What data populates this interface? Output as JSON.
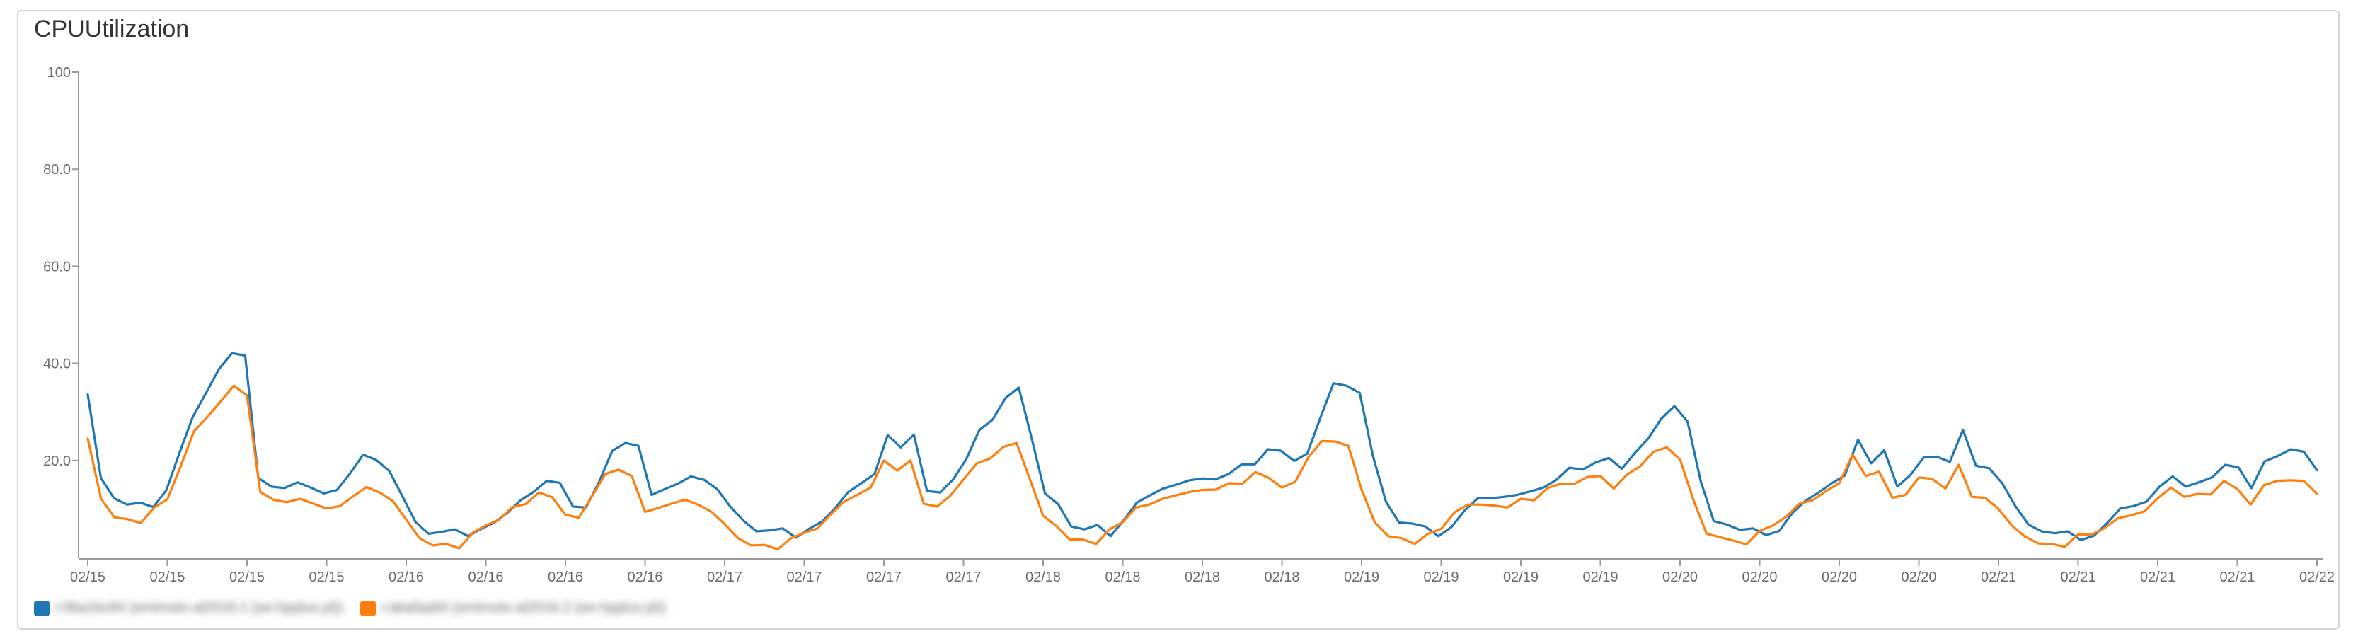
{
  "title": "CPUUtilization",
  "chart_data": {
    "type": "line",
    "title": "CPUUtilization",
    "xlabel": "",
    "ylabel": "",
    "ylim": [
      0,
      100
    ],
    "y_ticks": [
      "100",
      "80.0",
      "60.0",
      "40.0",
      "20.0"
    ],
    "y_tick_values": [
      100,
      80,
      60,
      40,
      20
    ],
    "x_tick_labels": [
      "02/15",
      "02/15",
      "02/15",
      "02/15",
      "02/16",
      "02/16",
      "02/16",
      "02/16",
      "02/17",
      "02/17",
      "02/17",
      "02/17",
      "02/18",
      "02/18",
      "02/18",
      "02/18",
      "02/19",
      "02/19",
      "02/19",
      "02/19",
      "02/20",
      "02/20",
      "02/20",
      "02/20",
      "02/21",
      "02/21",
      "02/21",
      "02/21",
      "02/22"
    ],
    "grid": false,
    "legend_position": "bottom-left",
    "series": [
      {
        "color": "#1f77b4",
        "values": [
          33.6,
          16.4,
          12.2,
          10.9,
          11.3,
          10.4,
          13.9,
          21.6,
          28.9,
          33.8,
          38.8,
          42.1,
          41.6,
          16.4,
          14.6,
          14.3,
          15.5,
          14.4,
          13.2,
          13.9,
          17.3,
          21.2,
          20.1,
          17.8,
          12.6,
          7.3,
          4.9,
          5.3,
          5.8,
          4.4,
          5.9,
          7.2,
          9.2,
          11.8,
          13.5,
          15.8,
          15.4,
          10.5,
          10.3,
          15.6,
          22.0,
          23.6,
          23.0,
          12.9,
          14.1,
          15.2,
          16.7,
          16.0,
          14.1,
          10.5,
          7.6,
          5.4,
          5.6,
          6.0,
          4.1,
          5.9,
          7.4,
          10.2,
          13.5,
          15.3,
          17.2,
          25.2,
          22.7,
          25.3,
          13.7,
          13.4,
          16.1,
          20.3,
          26.3,
          28.4,
          32.9,
          35.0,
          24.4,
          13.2,
          11.0,
          6.4,
          5.8,
          6.7,
          4.4,
          7.7,
          11.3,
          12.8,
          14.2,
          15.0,
          15.9,
          16.3,
          16.1,
          17.2,
          19.2,
          19.2,
          22.3,
          22.0,
          19.9,
          21.4,
          28.8,
          35.9,
          35.4,
          33.9,
          21.0,
          11.5,
          7.2,
          7.0,
          6.4,
          4.4,
          6.3,
          9.7,
          12.2,
          12.2,
          12.5,
          12.9,
          13.6,
          14.4,
          16.0,
          18.5,
          18.1,
          19.6,
          20.5,
          18.3,
          21.6,
          24.5,
          28.6,
          31.2,
          28.0,
          15.8,
          7.5,
          6.8,
          5.7,
          6.0,
          4.6,
          5.5,
          9.2,
          11.7,
          13.4,
          15.3,
          16.9,
          24.3,
          19.4,
          22.1,
          14.6,
          17.0,
          20.6,
          20.8,
          19.7,
          26.3,
          18.9,
          18.4,
          15.3,
          10.6,
          6.8,
          5.4,
          5.0,
          5.4,
          3.6,
          4.5,
          7.1,
          10.1,
          10.6,
          11.5,
          14.6,
          16.7,
          14.6,
          15.5,
          16.5,
          19.1,
          18.6,
          14.3,
          19.8,
          20.9,
          22.3,
          21.8,
          18.0
        ]
      },
      {
        "color": "#ff7f0e",
        "values": [
          24.5,
          12.1,
          8.3,
          7.9,
          7.1,
          10.3,
          12.0,
          18.8,
          26.0,
          28.9,
          32.1,
          35.4,
          33.4,
          13.5,
          11.9,
          11.4,
          12.1,
          11.1,
          10.1,
          10.6,
          12.6,
          14.5,
          13.4,
          11.6,
          7.8,
          4.0,
          2.5,
          2.8,
          1.9,
          5.1,
          6.6,
          7.8,
          10.4,
          11.0,
          13.4,
          12.4,
          8.8,
          8.2,
          12.6,
          17.2,
          18.1,
          16.8,
          9.4,
          10.2,
          11.1,
          11.9,
          10.9,
          9.4,
          6.9,
          4.0,
          2.5,
          2.6,
          1.7,
          4.0,
          5.1,
          6.0,
          8.9,
          11.5,
          12.9,
          14.4,
          20.0,
          17.9,
          20.0,
          11.1,
          10.5,
          12.7,
          16.1,
          19.4,
          20.4,
          22.8,
          23.6,
          16.1,
          8.6,
          6.5,
          3.7,
          3.7,
          2.8,
          5.8,
          7.3,
          10.3,
          10.9,
          12.1,
          12.8,
          13.5,
          13.9,
          14.0,
          15.3,
          15.2,
          17.6,
          16.4,
          14.4,
          15.6,
          20.7,
          24.0,
          23.9,
          23.0,
          14.0,
          7.2,
          4.4,
          4.0,
          2.8,
          4.9,
          5.9,
          9.3,
          10.9,
          10.9,
          10.7,
          10.3,
          12.1,
          11.8,
          14.3,
          15.2,
          15.1,
          16.6,
          16.8,
          14.2,
          17.1,
          18.8,
          21.8,
          22.7,
          20.2,
          11.9,
          4.9,
          4.2,
          3.5,
          2.7,
          5.5,
          6.6,
          8.4,
          11.1,
          11.8,
          13.7,
          15.3,
          21.2,
          16.8,
          17.7,
          12.3,
          12.9,
          16.5,
          16.2,
          14.2,
          19.1,
          12.5,
          12.3,
          10.0,
          6.6,
          4.3,
          2.9,
          2.8,
          2.2,
          4.8,
          4.7,
          6.1,
          8.1,
          8.7,
          9.5,
          12.2,
          14.4,
          12.5,
          13.1,
          13.0,
          15.8,
          14.1,
          10.9,
          14.9,
          15.8,
          15.9,
          15.8,
          13.1
        ]
      }
    ],
    "legend": [
      {
        "color": "#1f77b4",
        "label": "i-0ba1bc84 (emimoto-al2016-1 (ee-hpplus.pl))"
      },
      {
        "color": "#ff7f0e",
        "label": "i-abafaa84 (emimoto-al2016-2 (ee-hpplus.pl))"
      }
    ]
  }
}
